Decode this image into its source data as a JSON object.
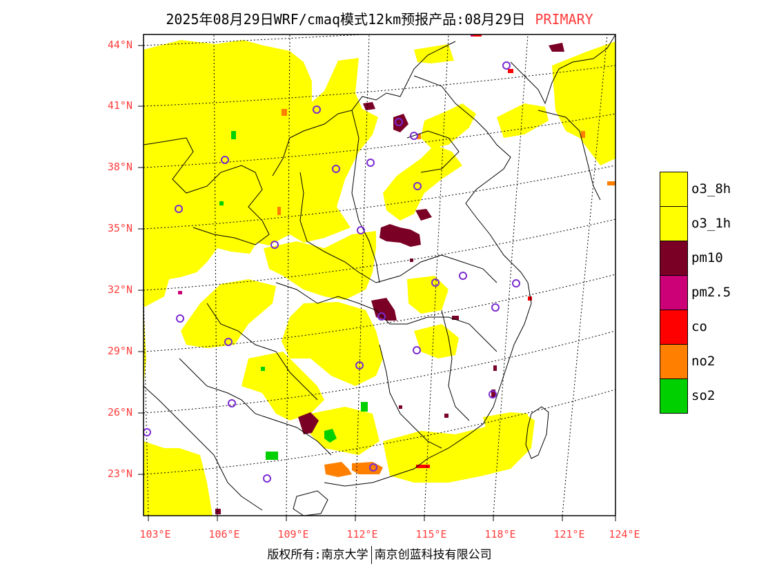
{
  "header": {
    "title": "2025年08月29日WRF/cmaq模式12km预报产品:08月29日",
    "tag": "PRIMARY"
  },
  "map": {
    "lat_labels": [
      "44°N",
      "41°N",
      "38°N",
      "35°N",
      "32°N",
      "29°N",
      "26°N",
      "23°N"
    ],
    "lon_labels": [
      "103°E",
      "106°E",
      "109°E",
      "112°E",
      "115°E",
      "118°E",
      "121°E",
      "124°E"
    ]
  },
  "legend": {
    "items": [
      {
        "label": "o3_8h",
        "color": "#ffff00"
      },
      {
        "label": "o3_1h",
        "color": "#ffff00"
      },
      {
        "label": "pm10",
        "color": "#7a0026"
      },
      {
        "label": "pm2.5",
        "color": "#cc0077"
      },
      {
        "label": "co",
        "color": "#ff0000"
      },
      {
        "label": "no2",
        "color": "#ff7f00"
      },
      {
        "label": "so2",
        "color": "#00d000"
      }
    ]
  },
  "footer": {
    "left": "版权所有:南京大学",
    "right": "南京创蓝科技有限公司"
  },
  "colors": {
    "o3": "#ffff00",
    "pm10": "#7a0026",
    "pm25": "#cc0077",
    "co": "#ff0000",
    "no2": "#ff7f00",
    "so2": "#00d000",
    "station": "#7a2ad0",
    "label": "#ff3b3b"
  }
}
